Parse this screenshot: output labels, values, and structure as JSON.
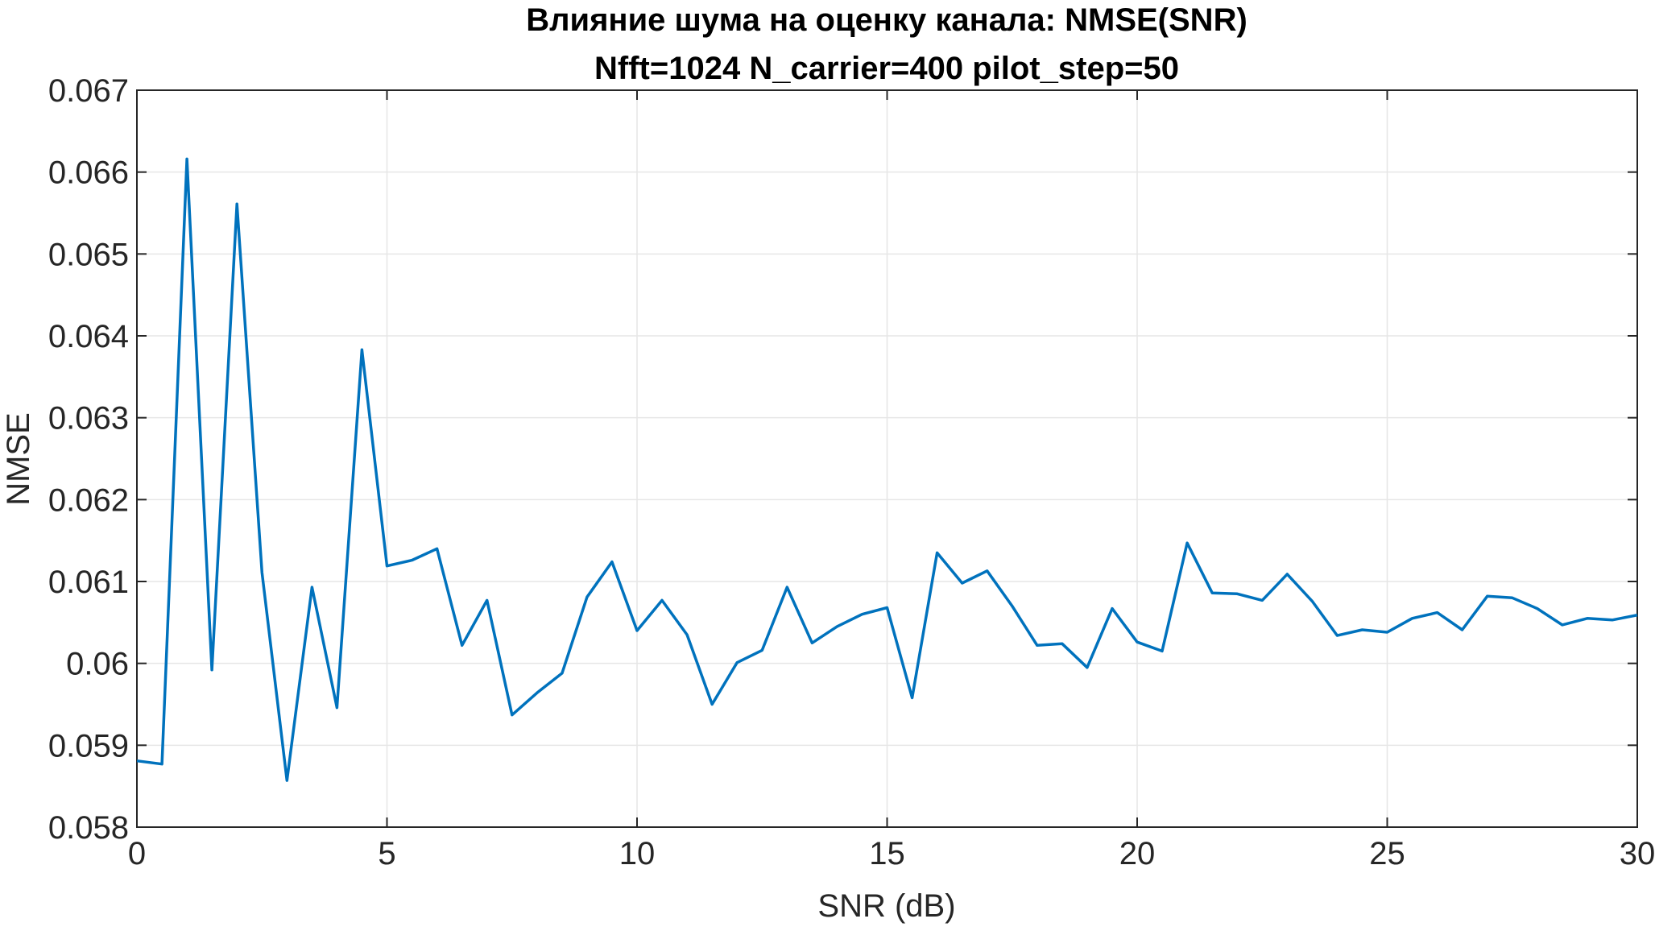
{
  "chart_data": {
    "type": "line",
    "title": "Влияние шума на оценку канала: NMSE(SNR)",
    "subtitle": "Nfft=1024 N_carrier=400 pilot_step=50",
    "xlabel": "SNR (dB)",
    "ylabel": "NMSE",
    "xlim": [
      0,
      30
    ],
    "ylim": [
      0.058,
      0.067
    ],
    "xticks": [
      0,
      5,
      10,
      15,
      20,
      25,
      30
    ],
    "xtick_labels": [
      "0",
      "5",
      "10",
      "15",
      "20",
      "25",
      "30"
    ],
    "yticks": [
      0.058,
      0.059,
      0.06,
      0.061,
      0.062,
      0.063,
      0.064,
      0.065,
      0.066,
      0.067
    ],
    "ytick_labels": [
      "0.058",
      "0.059",
      "0.06",
      "0.061",
      "0.062",
      "0.063",
      "0.064",
      "0.065",
      "0.066",
      "0.067"
    ],
    "grid": true,
    "colors": {
      "line": "#0072BD",
      "grid": "#e6e6e6",
      "axis": "#262626"
    },
    "series": [
      {
        "x": [
          0,
          0.5,
          1,
          1.5,
          2,
          2.5,
          3,
          3.5,
          4,
          4.5,
          5,
          5.5,
          6,
          6.5,
          7,
          7.5,
          8,
          8.5,
          9,
          9.5,
          10,
          10.5,
          11,
          11.5,
          12,
          12.5,
          13,
          13.5,
          14,
          14.5,
          15,
          15.5,
          16,
          16.5,
          17,
          17.5,
          18,
          18.5,
          19,
          19.5,
          20,
          20.5,
          21,
          21.5,
          22,
          22.5,
          23,
          23.5,
          24,
          24.5,
          25,
          25.5,
          26,
          26.5,
          27,
          27.5,
          28,
          28.5,
          29,
          29.5,
          30
        ],
        "y": [
          0.05881,
          0.05877,
          0.06616,
          0.05992,
          0.06561,
          0.06111,
          0.05857,
          0.06093,
          0.05946,
          0.06383,
          0.06119,
          0.06126,
          0.0614,
          0.06022,
          0.06077,
          0.05937,
          0.05964,
          0.05988,
          0.06081,
          0.06124,
          0.0604,
          0.06077,
          0.06035,
          0.0595,
          0.06001,
          0.06016,
          0.06093,
          0.06025,
          0.06045,
          0.0606,
          0.06068,
          0.05958,
          0.06135,
          0.06098,
          0.06113,
          0.0607,
          0.06022,
          0.06024,
          0.05995,
          0.06067,
          0.06026,
          0.06015,
          0.06147,
          0.06086,
          0.06085,
          0.06077,
          0.06109,
          0.06076,
          0.06034,
          0.06041,
          0.06038,
          0.06055,
          0.06062,
          0.06041,
          0.06082,
          0.0608,
          0.06067,
          0.06047,
          0.06055,
          0.06053,
          0.06059
        ]
      }
    ]
  }
}
